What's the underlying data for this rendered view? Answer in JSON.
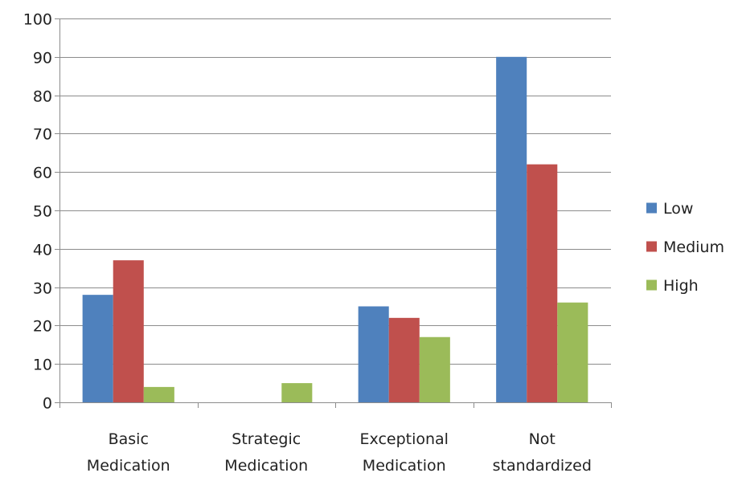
{
  "chart_data": {
    "type": "bar",
    "categories": [
      [
        "Basic",
        "Medication"
      ],
      [
        "Strategic",
        "Medication"
      ],
      [
        "Exceptional",
        "Medication"
      ],
      [
        "Not",
        "standardized"
      ]
    ],
    "series": [
      {
        "name": "Low",
        "color": "#4f81bd",
        "values": [
          28,
          0,
          25,
          90
        ]
      },
      {
        "name": "Medium",
        "color": "#c0504d",
        "values": [
          37,
          0,
          22,
          62
        ]
      },
      {
        "name": "High",
        "color": "#9bbb59",
        "values": [
          4,
          5,
          17,
          26
        ]
      }
    ],
    "ylim": [
      0,
      100
    ],
    "yticks": [
      0,
      10,
      20,
      30,
      40,
      50,
      60,
      70,
      80,
      90,
      100
    ],
    "grid": true,
    "legend_position": "right",
    "title": "",
    "xlabel": "",
    "ylabel": ""
  }
}
